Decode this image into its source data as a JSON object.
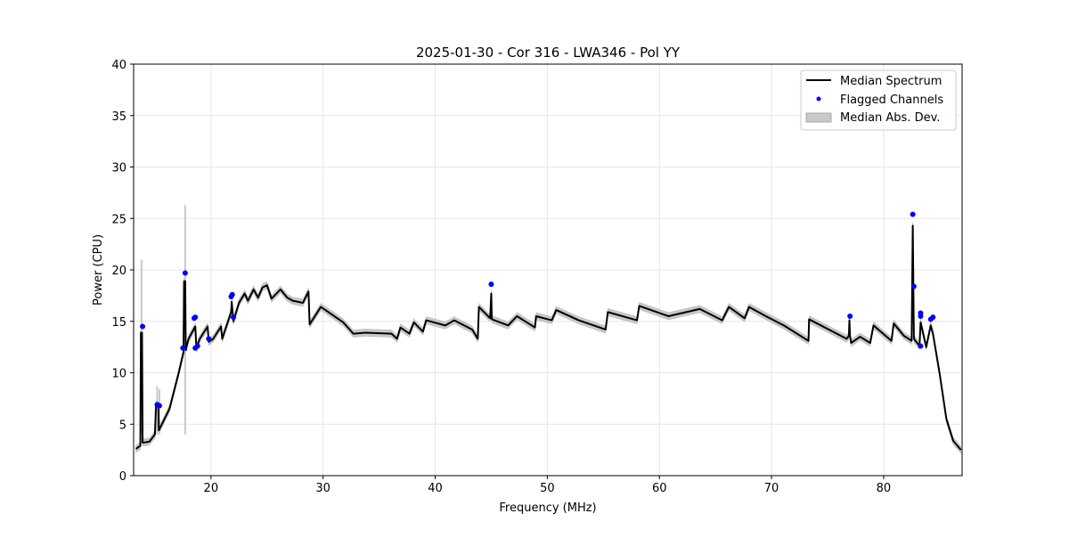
{
  "chart_data": {
    "type": "line",
    "title": "2025-01-30 - Cor 316 - LWA346 - Pol YY",
    "xlabel": "Frequency (MHz)",
    "ylabel": "Power (CPU)",
    "xlim": [
      13.1,
      87.0
    ],
    "ylim": [
      0,
      40
    ],
    "xticks": [
      20,
      30,
      40,
      50,
      60,
      70,
      80
    ],
    "yticks": [
      0,
      5,
      10,
      15,
      20,
      25,
      30,
      35,
      40
    ],
    "grid": true,
    "legend": {
      "placement": "top-right",
      "entries": [
        "Median Spectrum",
        "Flagged Channels",
        "Median Abs. Dev."
      ]
    },
    "colors": {
      "median": "#000000",
      "flagged": "#0000ff",
      "mad": "#c8c8c8"
    },
    "median_abs_dev": 0.35,
    "mad_spikes": [
      [
        13.8,
        21.0
      ],
      [
        15.2,
        8.7
      ],
      [
        15.4,
        8.4
      ],
      [
        17.7,
        26.3
      ]
    ],
    "median_spectrum": [
      [
        13.3,
        2.6
      ],
      [
        13.7,
        2.9
      ],
      [
        13.75,
        13.9
      ],
      [
        13.85,
        13.9
      ],
      [
        13.9,
        3.2
      ],
      [
        14.5,
        3.3
      ],
      [
        15.0,
        4.0
      ],
      [
        15.1,
        6.9
      ],
      [
        15.3,
        6.9
      ],
      [
        15.35,
        4.4
      ],
      [
        16.3,
        6.5
      ],
      [
        17.1,
        9.9
      ],
      [
        17.55,
        12.0
      ],
      [
        17.6,
        18.9
      ],
      [
        17.7,
        18.9
      ],
      [
        17.75,
        12.2
      ],
      [
        18.0,
        13.3
      ],
      [
        18.6,
        14.5
      ],
      [
        18.7,
        12.4
      ],
      [
        19.0,
        13.3
      ],
      [
        19.7,
        14.5
      ],
      [
        19.8,
        13.0
      ],
      [
        20.2,
        13.3
      ],
      [
        20.9,
        14.5
      ],
      [
        21.0,
        13.3
      ],
      [
        21.8,
        15.9
      ],
      [
        21.85,
        16.9
      ],
      [
        22.0,
        15.0
      ],
      [
        22.5,
        16.8
      ],
      [
        23.0,
        17.7
      ],
      [
        23.3,
        17.0
      ],
      [
        23.8,
        18.1
      ],
      [
        24.2,
        17.3
      ],
      [
        24.6,
        18.3
      ],
      [
        25.0,
        18.5
      ],
      [
        25.4,
        17.2
      ],
      [
        26.2,
        18.1
      ],
      [
        26.8,
        17.3
      ],
      [
        27.3,
        17.0
      ],
      [
        28.2,
        16.8
      ],
      [
        28.7,
        17.9
      ],
      [
        28.8,
        14.7
      ],
      [
        29.8,
        16.4
      ],
      [
        31.0,
        15.5
      ],
      [
        31.8,
        14.9
      ],
      [
        32.7,
        13.8
      ],
      [
        33.8,
        13.9
      ],
      [
        36.1,
        13.8
      ],
      [
        36.6,
        13.3
      ],
      [
        36.9,
        14.4
      ],
      [
        37.7,
        13.8
      ],
      [
        38.1,
        14.9
      ],
      [
        38.9,
        14.0
      ],
      [
        39.2,
        15.1
      ],
      [
        40.9,
        14.6
      ],
      [
        41.7,
        15.1
      ],
      [
        43.3,
        14.2
      ],
      [
        43.8,
        13.3
      ],
      [
        43.9,
        16.4
      ],
      [
        44.9,
        15.3
      ],
      [
        45.0,
        17.7
      ],
      [
        45.05,
        15.2
      ],
      [
        46.5,
        14.6
      ],
      [
        47.3,
        15.5
      ],
      [
        48.9,
        14.4
      ],
      [
        49.0,
        15.5
      ],
      [
        50.4,
        15.1
      ],
      [
        50.8,
        16.1
      ],
      [
        52.8,
        15.1
      ],
      [
        55.2,
        14.2
      ],
      [
        55.4,
        15.9
      ],
      [
        58.0,
        15.1
      ],
      [
        58.2,
        16.5
      ],
      [
        60.8,
        15.5
      ],
      [
        62.4,
        15.9
      ],
      [
        63.6,
        16.2
      ],
      [
        65.6,
        15.1
      ],
      [
        66.2,
        16.4
      ],
      [
        67.6,
        15.3
      ],
      [
        68.0,
        16.4
      ],
      [
        69.5,
        15.5
      ],
      [
        71.1,
        14.6
      ],
      [
        73.3,
        13.1
      ],
      [
        73.35,
        15.2
      ],
      [
        76.7,
        13.3
      ],
      [
        76.9,
        13.6
      ],
      [
        76.95,
        15.1
      ],
      [
        77.0,
        13.6
      ],
      [
        77.1,
        12.9
      ],
      [
        77.9,
        13.5
      ],
      [
        78.8,
        12.9
      ],
      [
        79.1,
        14.6
      ],
      [
        80.7,
        13.1
      ],
      [
        80.9,
        14.8
      ],
      [
        81.8,
        13.6
      ],
      [
        82.5,
        13.1
      ],
      [
        82.6,
        24.3
      ],
      [
        82.7,
        13.3
      ],
      [
        83.2,
        12.6
      ],
      [
        83.3,
        14.9
      ],
      [
        83.8,
        12.5
      ],
      [
        84.2,
        14.6
      ],
      [
        84.4,
        13.8
      ],
      [
        85.0,
        9.9
      ],
      [
        85.6,
        5.5
      ],
      [
        86.2,
        3.4
      ],
      [
        86.9,
        2.5
      ]
    ],
    "flagged_channels": [
      [
        13.9,
        14.5
      ],
      [
        15.2,
        6.9
      ],
      [
        15.4,
        6.8
      ],
      [
        17.5,
        12.4
      ],
      [
        17.7,
        19.7
      ],
      [
        18.5,
        15.3
      ],
      [
        18.6,
        15.4
      ],
      [
        18.6,
        12.4
      ],
      [
        18.8,
        12.6
      ],
      [
        19.8,
        13.3
      ],
      [
        21.8,
        17.4
      ],
      [
        21.9,
        17.6
      ],
      [
        22.0,
        15.4
      ],
      [
        45.0,
        18.6
      ],
      [
        77.0,
        15.5
      ],
      [
        82.6,
        25.4
      ],
      [
        82.7,
        18.4
      ],
      [
        83.3,
        15.8
      ],
      [
        83.3,
        15.5
      ],
      [
        83.3,
        12.6
      ],
      [
        84.2,
        15.2
      ],
      [
        84.4,
        15.4
      ]
    ]
  }
}
